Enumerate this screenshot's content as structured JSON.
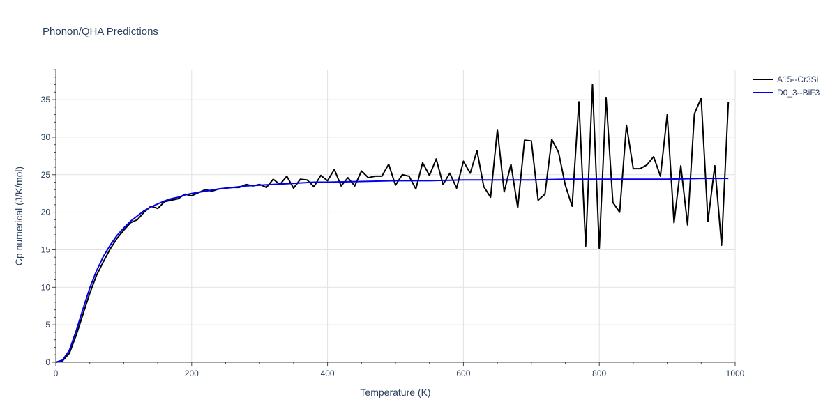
{
  "chart_data": {
    "type": "line",
    "title": "Phonon/QHA Predictions",
    "xlabel": "Temperature (K)",
    "ylabel": "Cp numerical (J/K/mol)",
    "xlim": [
      0,
      1000
    ],
    "ylim": [
      0,
      39
    ],
    "x_ticks": [
      0,
      200,
      400,
      600,
      800,
      1000
    ],
    "y_ticks": [
      0,
      5,
      10,
      15,
      20,
      25,
      30,
      35
    ],
    "grid": true,
    "legend": "top-right",
    "series": [
      {
        "name": "A15--Cr3Si",
        "color": "#000000",
        "x": [
          0,
          10,
          20,
          30,
          40,
          50,
          60,
          70,
          80,
          90,
          100,
          110,
          120,
          130,
          140,
          150,
          160,
          170,
          180,
          190,
          200,
          210,
          220,
          230,
          240,
          250,
          260,
          270,
          280,
          290,
          300,
          310,
          320,
          330,
          340,
          350,
          360,
          370,
          380,
          390,
          400,
          410,
          420,
          430,
          440,
          450,
          460,
          470,
          480,
          490,
          500,
          510,
          520,
          530,
          540,
          550,
          560,
          570,
          580,
          590,
          600,
          610,
          620,
          630,
          640,
          650,
          660,
          670,
          680,
          690,
          700,
          710,
          720,
          730,
          740,
          750,
          760,
          770,
          780,
          790,
          800,
          810,
          820,
          830,
          840,
          850,
          860,
          870,
          880,
          890,
          900,
          910,
          920,
          930,
          940,
          950,
          960,
          970,
          980,
          990
        ],
        "y": [
          0,
          0.2,
          1.2,
          3.6,
          6.4,
          9.2,
          11.6,
          13.4,
          15.1,
          16.5,
          17.6,
          18.6,
          19.0,
          20.0,
          20.8,
          20.5,
          21.4,
          21.6,
          21.8,
          22.4,
          22.2,
          22.6,
          23.0,
          22.8,
          23.1,
          23.2,
          23.3,
          23.3,
          23.7,
          23.5,
          23.7,
          23.3,
          24.4,
          23.7,
          24.8,
          23.2,
          24.4,
          24.3,
          23.4,
          24.9,
          24.2,
          25.7,
          23.5,
          24.6,
          23.5,
          25.5,
          24.6,
          24.8,
          24.8,
          26.4,
          23.6,
          25.0,
          24.8,
          23.1,
          26.6,
          24.9,
          27.1,
          23.7,
          25.2,
          23.2,
          26.8,
          25.2,
          28.2,
          23.4,
          22.0,
          31.0,
          22.7,
          26.4,
          20.6,
          29.6,
          29.5,
          21.6,
          22.4,
          29.7,
          28.0,
          23.6,
          20.8,
          34.7,
          15.5,
          37.0,
          15.2,
          35.3,
          21.3,
          20.0,
          31.6,
          25.8,
          25.8,
          26.3,
          27.4,
          24.8,
          33.0,
          18.6,
          26.2,
          18.3,
          33.1,
          35.2,
          18.8,
          26.2,
          15.6,
          34.7
        ]
      },
      {
        "name": "D0_3--BiF3",
        "color": "#0000ee",
        "x": [
          0,
          10,
          20,
          30,
          40,
          50,
          60,
          70,
          80,
          90,
          100,
          110,
          120,
          130,
          140,
          150,
          160,
          170,
          180,
          190,
          200,
          220,
          240,
          260,
          280,
          300,
          320,
          340,
          360,
          380,
          400,
          450,
          500,
          550,
          600,
          650,
          700,
          750,
          800,
          850,
          900,
          950,
          990
        ],
        "y": [
          0,
          0.3,
          1.6,
          4.2,
          7.1,
          9.9,
          12.2,
          14.1,
          15.6,
          16.9,
          17.9,
          18.8,
          19.5,
          20.2,
          20.7,
          21.1,
          21.5,
          21.8,
          22.0,
          22.3,
          22.5,
          22.8,
          23.1,
          23.3,
          23.5,
          23.6,
          23.7,
          23.8,
          23.9,
          24.0,
          24.0,
          24.1,
          24.2,
          24.2,
          24.3,
          24.3,
          24.3,
          24.4,
          24.4,
          24.4,
          24.4,
          24.5,
          24.5
        ]
      }
    ]
  }
}
